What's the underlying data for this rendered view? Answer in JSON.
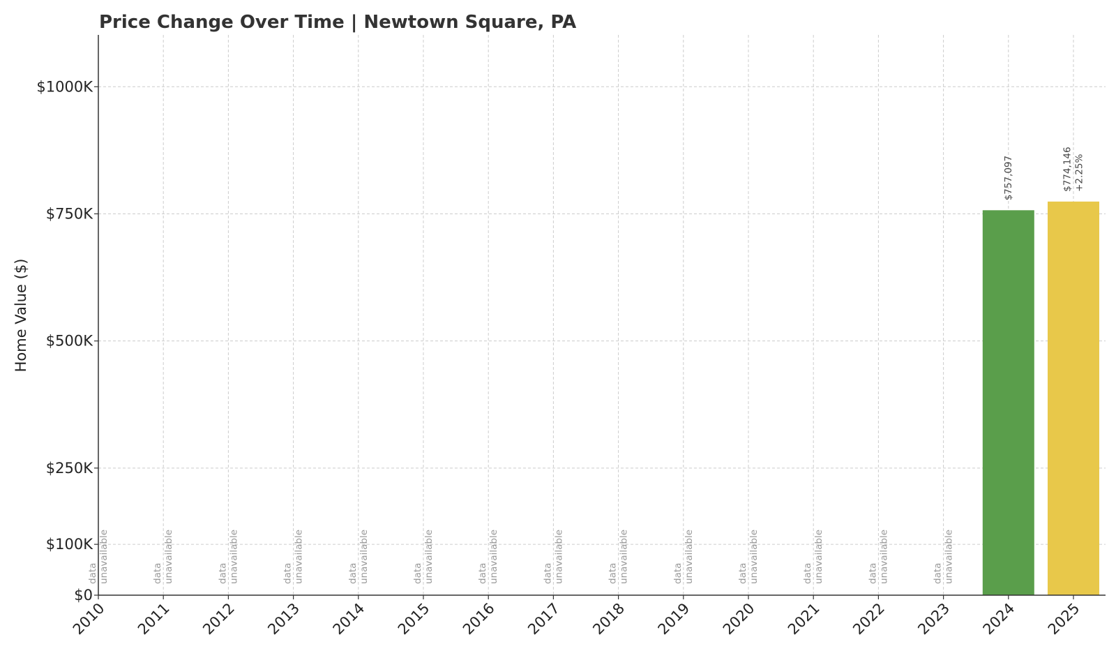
{
  "chart_data": {
    "type": "bar",
    "title": "Price Change Over Time | Newtown Square, PA",
    "ylabel": "Home Value ($)",
    "xlabel": "",
    "categories": [
      "2010",
      "2011",
      "2012",
      "2013",
      "2014",
      "2015",
      "2016",
      "2017",
      "2018",
      "2019",
      "2020",
      "2021",
      "2022",
      "2023",
      "2024",
      "2025"
    ],
    "values": [
      null,
      null,
      null,
      null,
      null,
      null,
      null,
      null,
      null,
      null,
      null,
      null,
      null,
      null,
      757097,
      774146
    ],
    "bar_colors": {
      "2024": "#5a9e4b",
      "2025": "#e8c84a"
    },
    "bar_labels": {
      "2024": [
        "$757,097"
      ],
      "2025": [
        "$774,146",
        "+2.25%"
      ]
    },
    "missing_label": [
      "data",
      "unavailable"
    ],
    "yticks": [
      0,
      100000,
      250000,
      500000,
      750000,
      1000000
    ],
    "ytick_labels": [
      "$0",
      "$100K",
      "$250K",
      "$500K",
      "$750K",
      "$1000K"
    ],
    "ylim": [
      0,
      1100000
    ],
    "grid": true
  }
}
